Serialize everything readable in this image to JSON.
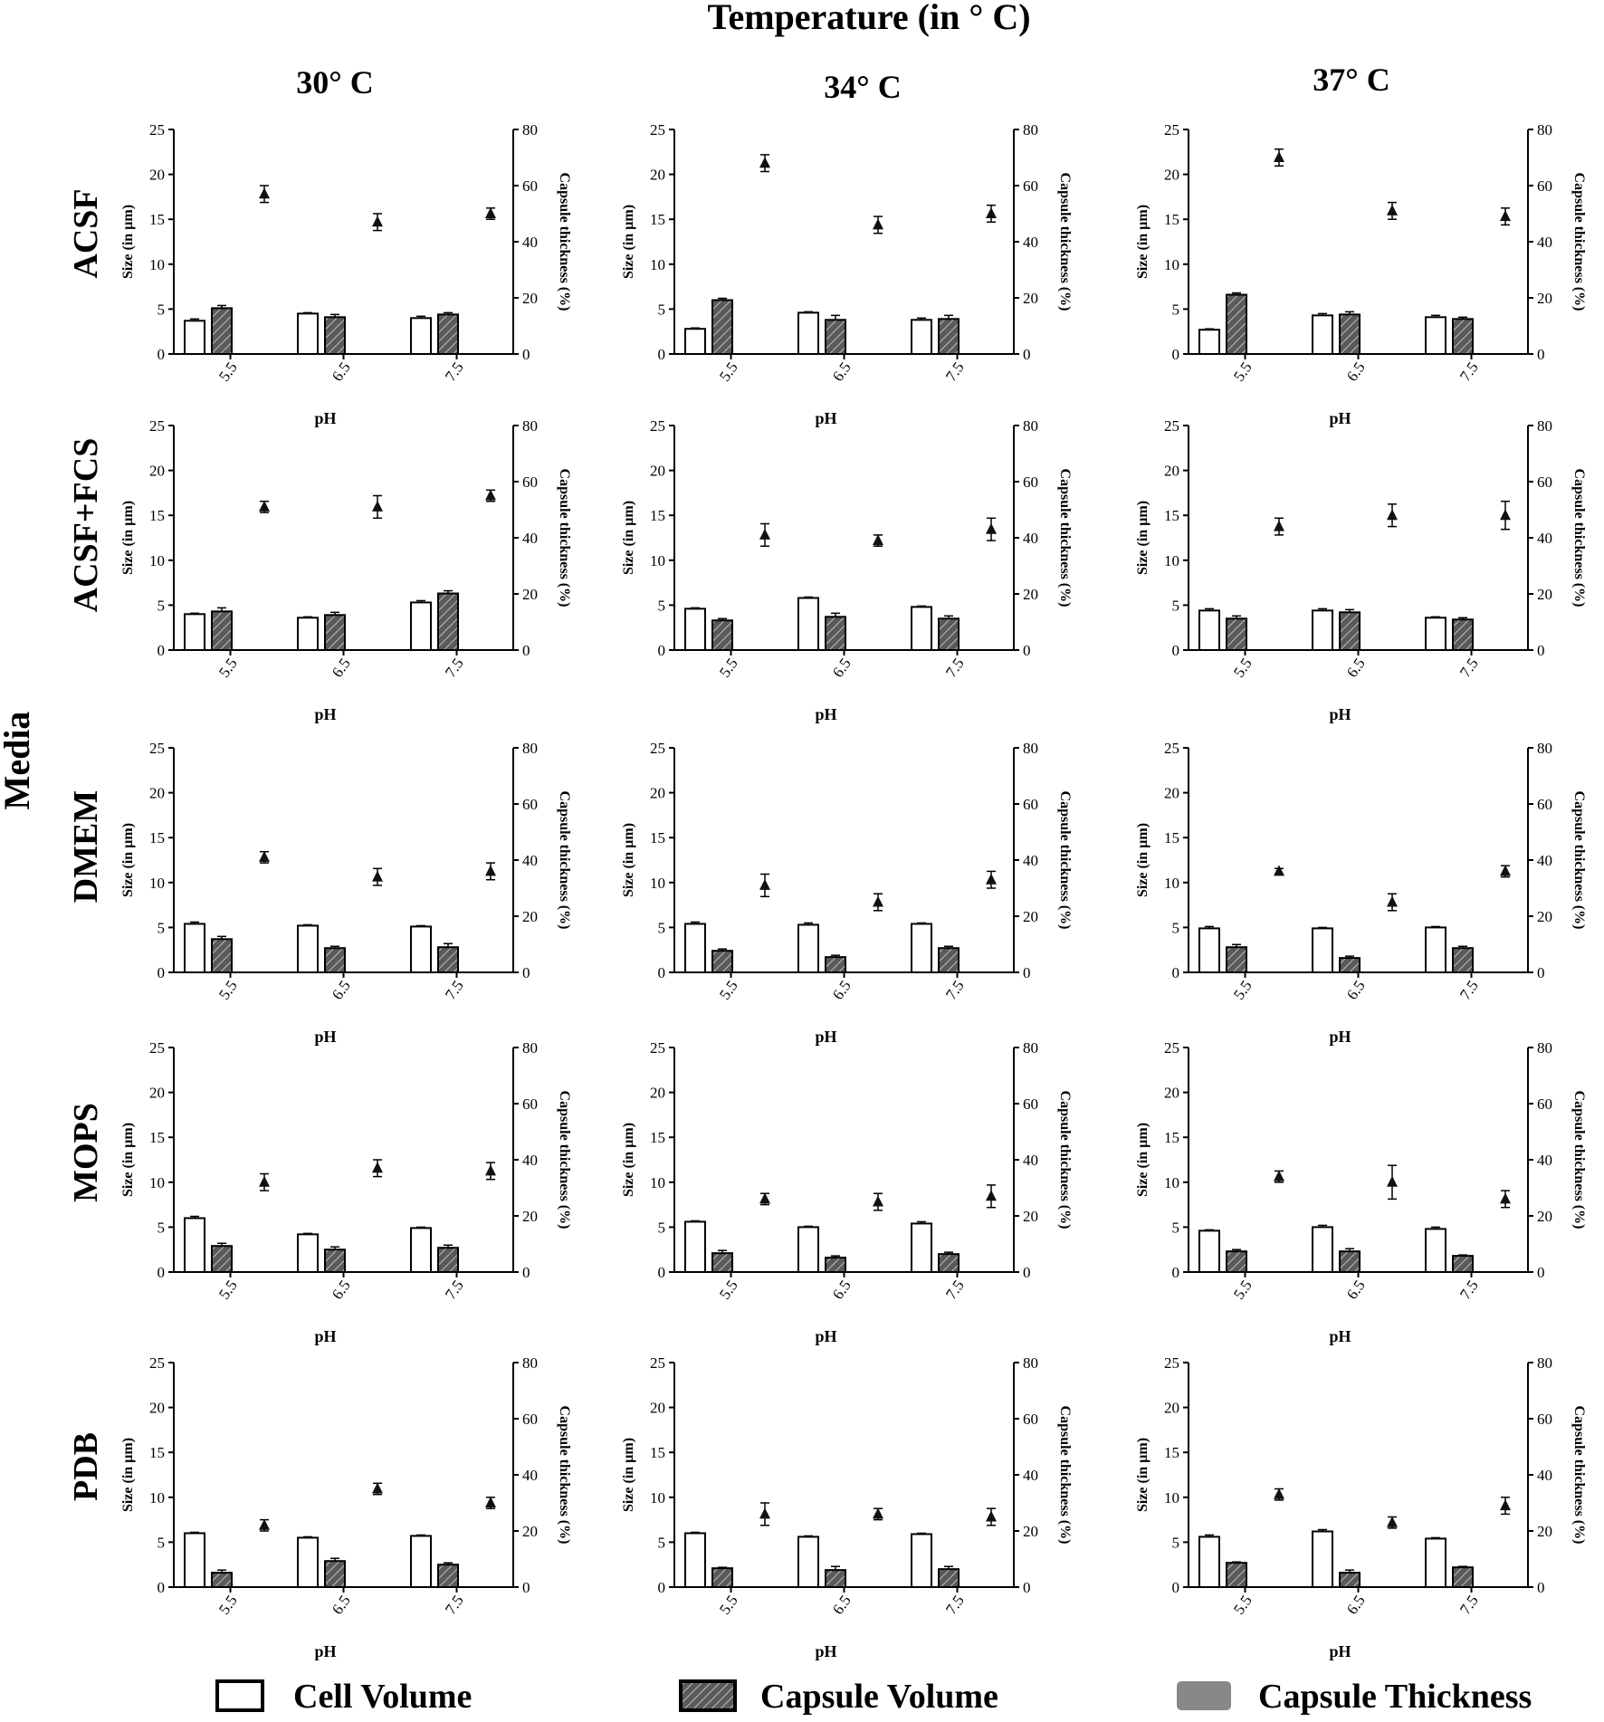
{
  "figure": {
    "top_title": "Temperature (in ° C)",
    "side_title": "Media",
    "column_titles": [
      "30° C",
      "34° C",
      "37° C"
    ],
    "row_titles": [
      "ACSF",
      "ACSF+FCS",
      "DMEM",
      "MOPS",
      "PDB"
    ],
    "x_label": "pH",
    "y_left_label": "Size (in µm)",
    "y_right_label": "Capsule thickness (%)",
    "legend": {
      "cell_volume": "Cell Volume",
      "capsule_volume": "Capsule Volume",
      "capsule_thickness": "Capsule Thickness"
    },
    "colors": {
      "cell_fill": "#ffffff",
      "capsule_fill": "#5a5a5a",
      "thickness_swatch": "#888888",
      "ink": "#000000"
    }
  },
  "chart_data": {
    "type": "bar",
    "categories": [
      "5.5",
      "6.5",
      "7.5"
    ],
    "left_axis": {
      "label": "Size (in µm)",
      "ylim": [
        0,
        25
      ],
      "ticks": [
        0,
        5,
        10,
        15,
        20,
        25
      ]
    },
    "right_axis": {
      "label": "Capsule thickness (%)",
      "ylim": [
        0,
        80
      ],
      "ticks": [
        0,
        20,
        40,
        60,
        80
      ]
    },
    "xlabel": "pH",
    "panels": [
      {
        "medium": "ACSF",
        "temperature": "30° C",
        "cell_volume": [
          3.7,
          4.5,
          4.0
        ],
        "cell_err": [
          0.2,
          0.1,
          0.2
        ],
        "capsule_volume": [
          5.1,
          4.1,
          4.4
        ],
        "capsule_err": [
          0.3,
          0.3,
          0.2
        ],
        "capsule_thickness": [
          57,
          47,
          50
        ],
        "thickness_err": [
          3,
          3,
          2
        ]
      },
      {
        "medium": "ACSF",
        "temperature": "34° C",
        "cell_volume": [
          2.8,
          4.6,
          3.8
        ],
        "cell_err": [
          0.1,
          0.1,
          0.2
        ],
        "capsule_volume": [
          6.0,
          3.8,
          3.9
        ],
        "capsule_err": [
          0.2,
          0.5,
          0.4
        ],
        "capsule_thickness": [
          68,
          46,
          50
        ],
        "thickness_err": [
          3,
          3,
          3
        ]
      },
      {
        "medium": "ACSF",
        "temperature": "37° C",
        "cell_volume": [
          2.7,
          4.3,
          4.1
        ],
        "cell_err": [
          0.1,
          0.2,
          0.2
        ],
        "capsule_volume": [
          6.6,
          4.4,
          3.9
        ],
        "capsule_err": [
          0.2,
          0.3,
          0.2
        ],
        "capsule_thickness": [
          70,
          51,
          49
        ],
        "thickness_err": [
          3,
          3,
          3
        ]
      },
      {
        "medium": "ACSF+FCS",
        "temperature": "30° C",
        "cell_volume": [
          4.0,
          3.6,
          5.3
        ],
        "cell_err": [
          0.1,
          0.1,
          0.2
        ],
        "capsule_volume": [
          4.3,
          3.9,
          6.3
        ],
        "capsule_err": [
          0.4,
          0.3,
          0.3
        ],
        "capsule_thickness": [
          51,
          51,
          55
        ],
        "thickness_err": [
          2,
          4,
          2
        ]
      },
      {
        "medium": "ACSF+FCS",
        "temperature": "34° C",
        "cell_volume": [
          4.6,
          5.8,
          4.8
        ],
        "cell_err": [
          0.1,
          0.1,
          0.1
        ],
        "capsule_volume": [
          3.3,
          3.7,
          3.5
        ],
        "capsule_err": [
          0.2,
          0.4,
          0.3
        ],
        "capsule_thickness": [
          41,
          39,
          43
        ],
        "thickness_err": [
          4,
          2,
          4
        ]
      },
      {
        "medium": "ACSF+FCS",
        "temperature": "37° C",
        "cell_volume": [
          4.4,
          4.4,
          3.6
        ],
        "cell_err": [
          0.2,
          0.2,
          0.1
        ],
        "capsule_volume": [
          3.5,
          4.2,
          3.4
        ],
        "capsule_err": [
          0.3,
          0.3,
          0.2
        ],
        "capsule_thickness": [
          44,
          48,
          48
        ],
        "thickness_err": [
          3,
          4,
          5
        ]
      },
      {
        "medium": "DMEM",
        "temperature": "30° C",
        "cell_volume": [
          5.4,
          5.2,
          5.1
        ],
        "cell_err": [
          0.2,
          0.1,
          0.1
        ],
        "capsule_volume": [
          3.7,
          2.7,
          2.8
        ],
        "capsule_err": [
          0.3,
          0.2,
          0.4
        ],
        "capsule_thickness": [
          41,
          34,
          36
        ],
        "thickness_err": [
          2,
          3,
          3
        ]
      },
      {
        "medium": "DMEM",
        "temperature": "34° C",
        "cell_volume": [
          5.4,
          5.3,
          5.4
        ],
        "cell_err": [
          0.2,
          0.2,
          0.1
        ],
        "capsule_volume": [
          2.4,
          1.7,
          2.7
        ],
        "capsule_err": [
          0.2,
          0.2,
          0.2
        ],
        "capsule_thickness": [
          31,
          25,
          33
        ],
        "thickness_err": [
          4,
          3,
          3
        ]
      },
      {
        "medium": "DMEM",
        "temperature": "37° C",
        "cell_volume": [
          4.9,
          4.9,
          5.0
        ],
        "cell_err": [
          0.2,
          0.1,
          0.1
        ],
        "capsule_volume": [
          2.8,
          1.6,
          2.7
        ],
        "capsule_err": [
          0.3,
          0.2,
          0.2
        ],
        "capsule_thickness": [
          36,
          25,
          36
        ],
        "thickness_err": [
          1,
          3,
          2
        ]
      },
      {
        "medium": "MOPS",
        "temperature": "30° C",
        "cell_volume": [
          6.0,
          4.2,
          4.9
        ],
        "cell_err": [
          0.2,
          0.1,
          0.1
        ],
        "capsule_volume": [
          2.9,
          2.5,
          2.7
        ],
        "capsule_err": [
          0.3,
          0.3,
          0.3
        ],
        "capsule_thickness": [
          32,
          37,
          36
        ],
        "thickness_err": [
          3,
          3,
          3
        ]
      },
      {
        "medium": "MOPS",
        "temperature": "34° C",
        "cell_volume": [
          5.6,
          5.0,
          5.4
        ],
        "cell_err": [
          0.1,
          0.1,
          0.2
        ],
        "capsule_volume": [
          2.1,
          1.6,
          2.0
        ],
        "capsule_err": [
          0.3,
          0.2,
          0.2
        ],
        "capsule_thickness": [
          26,
          25,
          27
        ],
        "thickness_err": [
          2,
          3,
          4
        ]
      },
      {
        "medium": "MOPS",
        "temperature": "37° C",
        "cell_volume": [
          4.6,
          5.0,
          4.8
        ],
        "cell_err": [
          0.1,
          0.2,
          0.2
        ],
        "capsule_volume": [
          2.3,
          2.3,
          1.8
        ],
        "capsule_err": [
          0.2,
          0.3,
          0.1
        ],
        "capsule_thickness": [
          34,
          32,
          26
        ],
        "thickness_err": [
          2,
          6,
          3
        ]
      },
      {
        "medium": "PDB",
        "temperature": "30° C",
        "cell_volume": [
          6.0,
          5.5,
          5.7
        ],
        "cell_err": [
          0.1,
          0.1,
          0.1
        ],
        "capsule_volume": [
          1.6,
          2.9,
          2.5
        ],
        "capsule_err": [
          0.3,
          0.3,
          0.2
        ],
        "capsule_thickness": [
          22,
          35,
          30
        ],
        "thickness_err": [
          2,
          2,
          2
        ]
      },
      {
        "medium": "PDB",
        "temperature": "34° C",
        "cell_volume": [
          6.0,
          5.6,
          5.9
        ],
        "cell_err": [
          0.1,
          0.1,
          0.1
        ],
        "capsule_volume": [
          2.1,
          1.9,
          2.0
        ],
        "capsule_err": [
          0.1,
          0.4,
          0.3
        ],
        "capsule_thickness": [
          26,
          26,
          25
        ],
        "thickness_err": [
          4,
          2,
          3
        ]
      },
      {
        "medium": "PDB",
        "temperature": "37° C",
        "cell_volume": [
          5.6,
          6.2,
          5.4
        ],
        "cell_err": [
          0.2,
          0.2,
          0.1
        ],
        "capsule_volume": [
          2.7,
          1.6,
          2.2
        ],
        "capsule_err": [
          0.1,
          0.3,
          0.1
        ],
        "capsule_thickness": [
          33,
          23,
          29
        ],
        "thickness_err": [
          2,
          2,
          3
        ]
      }
    ]
  }
}
